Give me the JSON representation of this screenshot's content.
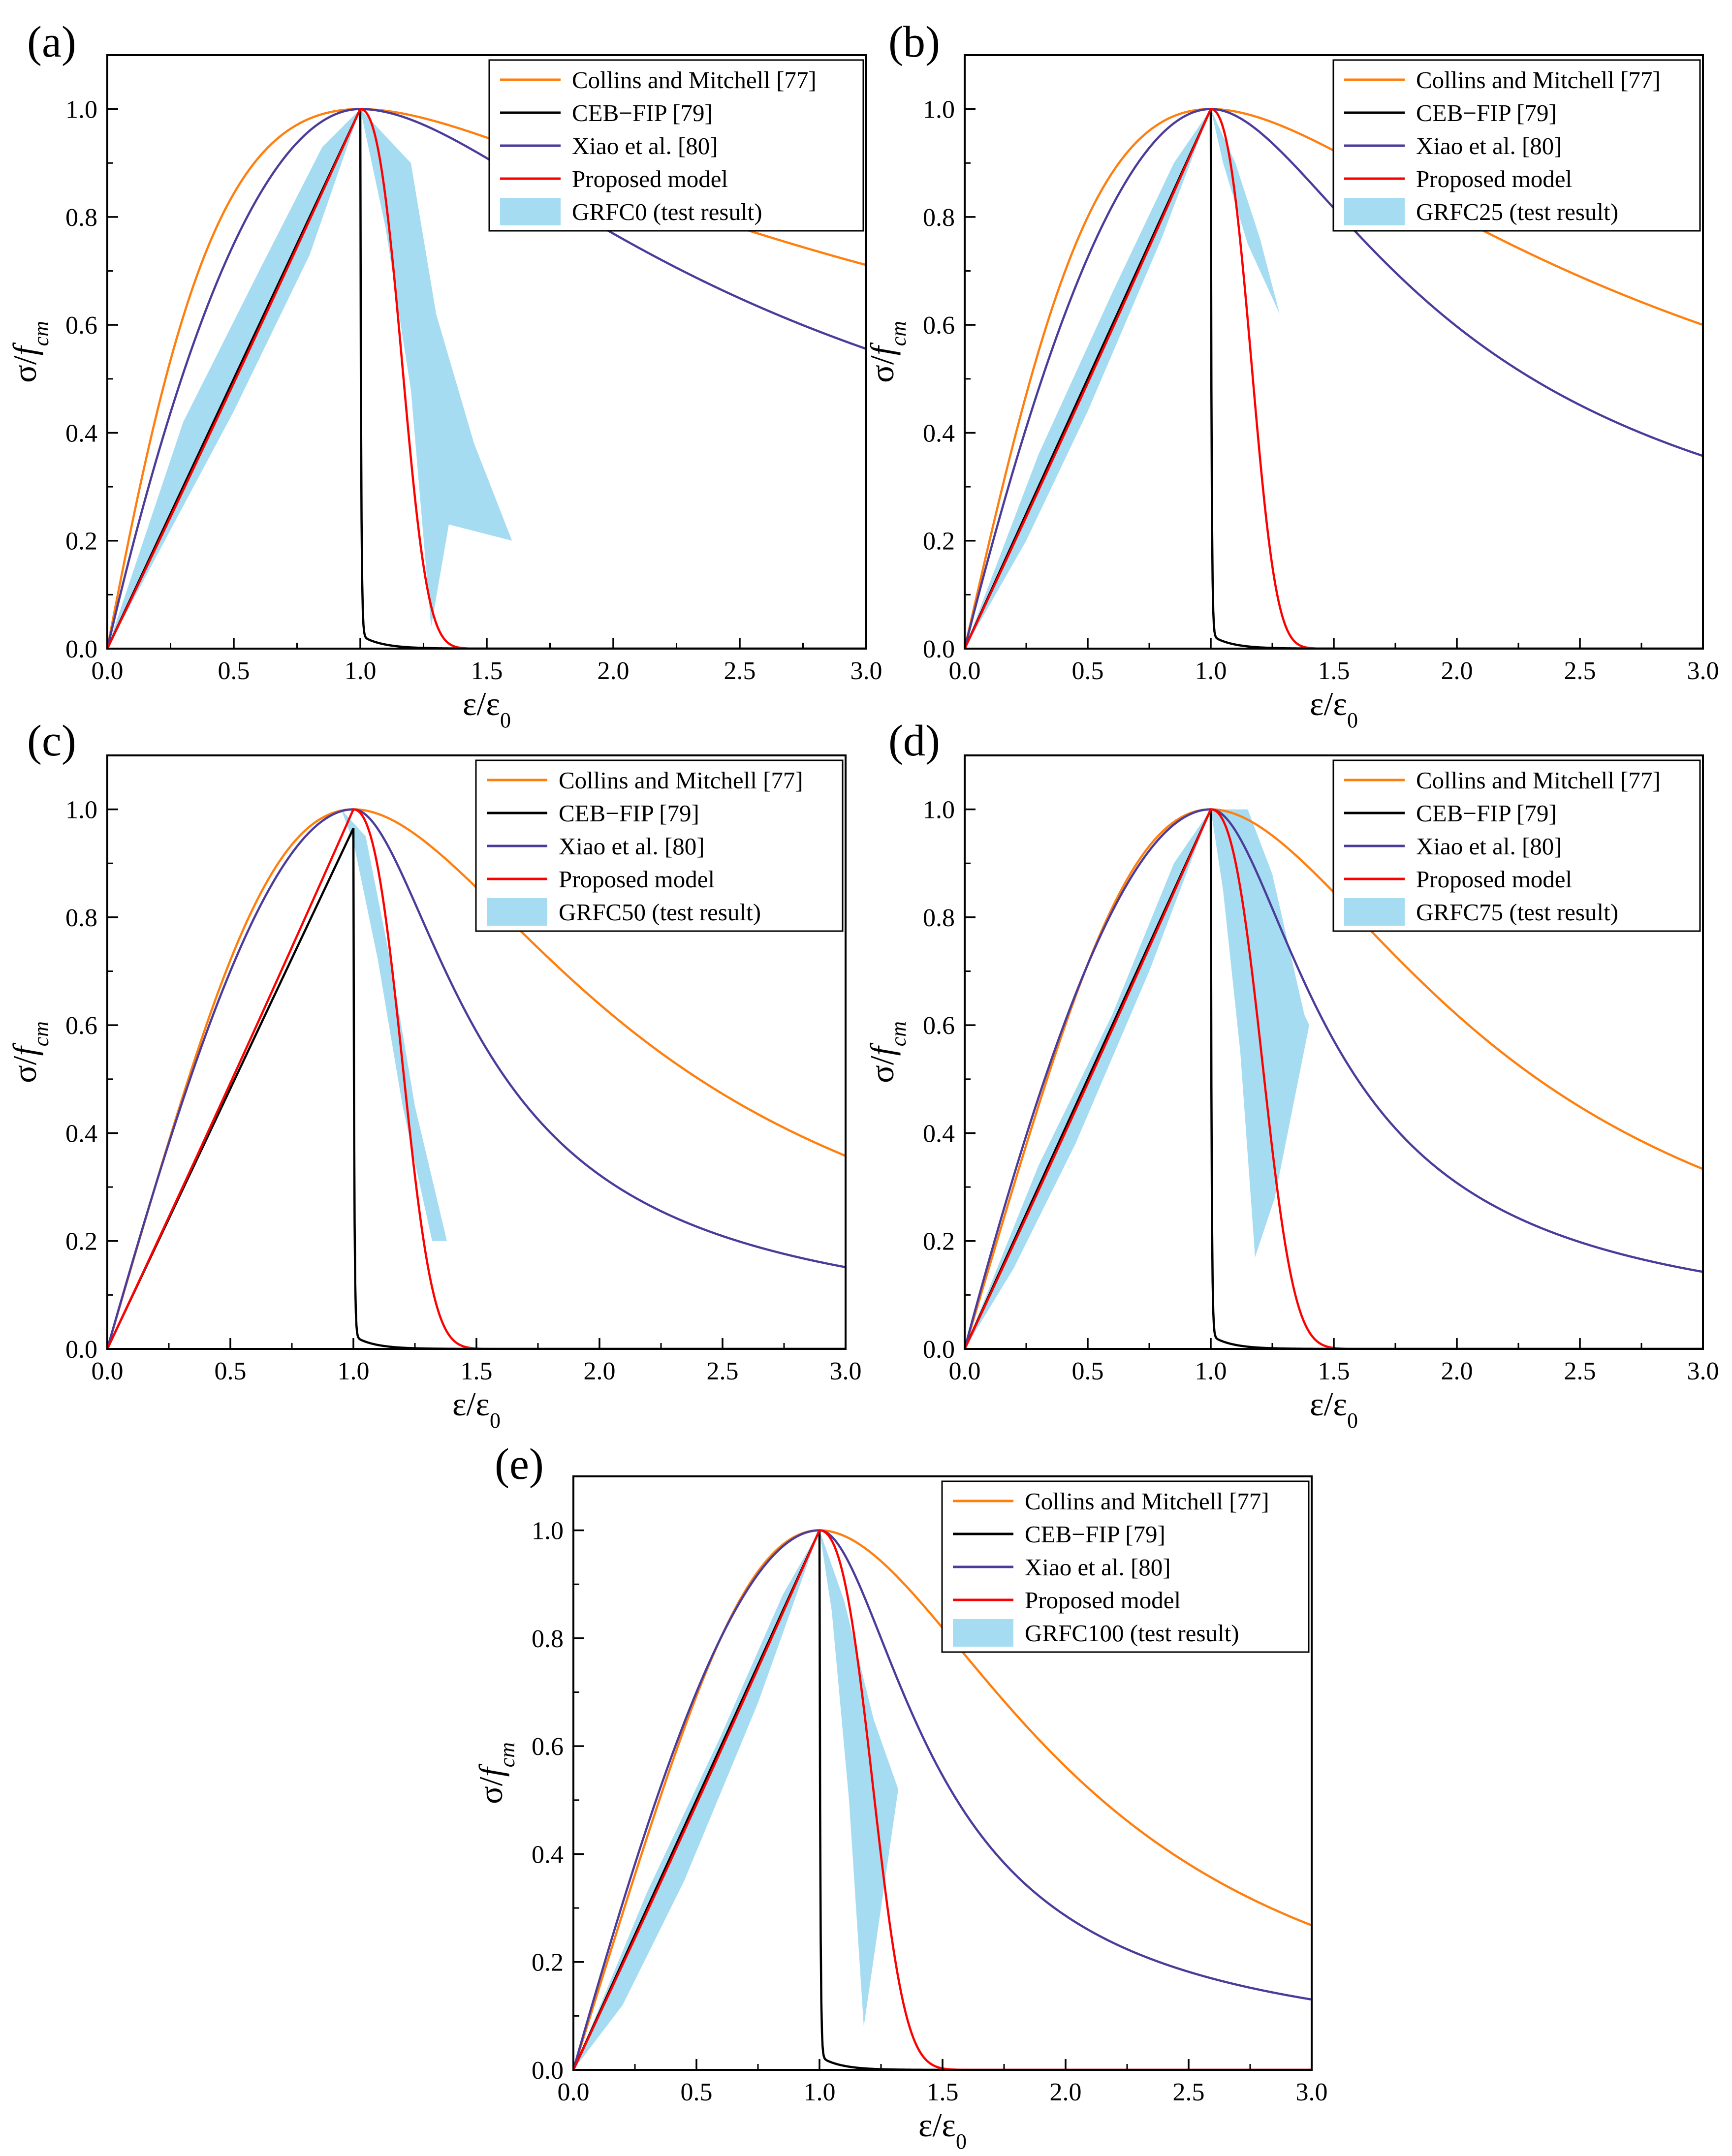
{
  "figure": {
    "colors": {
      "collins": "#FF7F0E",
      "ceb": "#000000",
      "xiao": "#4B3C9B",
      "proposed": "#FF0000",
      "test": "#A6DCF2"
    }
  },
  "chart_data": [
    {
      "panel": "(a)",
      "type": "line",
      "xlabel": "ε/ε0",
      "ylabel": "σ/fcm",
      "xlim": [
        0,
        3.0
      ],
      "ylim": [
        0,
        1.1
      ],
      "x_ticks": [
        "0.0",
        "0.5",
        "1.0",
        "1.5",
        "2.0",
        "2.5",
        "3.0"
      ],
      "y_ticks": [
        "0.0",
        "0.2",
        "0.4",
        "0.6",
        "0.8",
        "1.0"
      ],
      "legend_position": "top-right",
      "series": [
        {
          "name": "Collins and Mitchell [77]",
          "color": "#FF7F0E",
          "model": "collins",
          "n": 1.7
        },
        {
          "name": "CEB−FIP [79]",
          "color": "#000000",
          "model": "ceb",
          "peak": 1.0
        },
        {
          "name": "Xiao et al. [80]",
          "color": "#4B3C9B",
          "model": "xiao",
          "a": 2.0,
          "b": 0.6
        },
        {
          "name": "Proposed model",
          "color": "#FF0000",
          "model": "proposed",
          "alpha": 0.97,
          "beta": 22,
          "gamma": 8
        }
      ],
      "test_result": {
        "name": "GRFC0 (test result)",
        "upper": [
          [
            0,
            0
          ],
          [
            0.3,
            0.42
          ],
          [
            0.6,
            0.7
          ],
          [
            0.85,
            0.93
          ],
          [
            1.0,
            1.0
          ],
          [
            1.1,
            0.95
          ],
          [
            1.2,
            0.9
          ],
          [
            1.3,
            0.62
          ],
          [
            1.45,
            0.38
          ],
          [
            1.6,
            0.2
          ]
        ],
        "lower": [
          [
            1.6,
            0.2
          ],
          [
            1.35,
            0.23
          ],
          [
            1.28,
            0.04
          ],
          [
            1.2,
            0.48
          ],
          [
            1.1,
            0.78
          ],
          [
            1.0,
            1.0
          ],
          [
            0.8,
            0.73
          ],
          [
            0.5,
            0.44
          ],
          [
            0.25,
            0.22
          ],
          [
            0,
            0
          ]
        ]
      }
    },
    {
      "panel": "(b)",
      "type": "line",
      "xlabel": "ε/ε0",
      "ylabel": "σ/fcm",
      "xlim": [
        0,
        3.0
      ],
      "ylim": [
        0,
        1.1
      ],
      "x_ticks": [
        "0.0",
        "0.5",
        "1.0",
        "1.5",
        "2.0",
        "2.5",
        "3.0"
      ],
      "y_ticks": [
        "0.0",
        "0.2",
        "0.4",
        "0.6",
        "0.8",
        "1.0"
      ],
      "legend_position": "top-right",
      "series": [
        {
          "name": "Collins and Mitchell [77]",
          "color": "#FF7F0E",
          "model": "collins",
          "n": 2.0
        },
        {
          "name": "CEB−FIP [79]",
          "color": "#000000",
          "model": "ceb",
          "peak": 1.0
        },
        {
          "name": "Xiao et al. [80]",
          "color": "#4B3C9B",
          "model": "xiao",
          "a": 1.8,
          "b": 1.35
        },
        {
          "name": "Proposed model",
          "color": "#FF0000",
          "model": "proposed",
          "alpha": 0.97,
          "beta": 22,
          "gamma": 8
        }
      ],
      "test_result": {
        "name": "GRFC25 (test result)",
        "upper": [
          [
            0,
            0
          ],
          [
            0.3,
            0.36
          ],
          [
            0.6,
            0.66
          ],
          [
            0.85,
            0.9
          ],
          [
            1.0,
            1.0
          ],
          [
            1.1,
            0.9
          ],
          [
            1.2,
            0.76
          ],
          [
            1.28,
            0.62
          ]
        ],
        "lower": [
          [
            1.28,
            0.62
          ],
          [
            1.15,
            0.75
          ],
          [
            1.05,
            0.9
          ],
          [
            1.0,
            1.0
          ],
          [
            0.8,
            0.76
          ],
          [
            0.5,
            0.44
          ],
          [
            0.25,
            0.2
          ],
          [
            0,
            0
          ]
        ]
      }
    },
    {
      "panel": "(c)",
      "type": "line",
      "xlabel": "ε/ε0",
      "ylabel": "σ/fcm",
      "xlim": [
        0,
        3.0
      ],
      "ylim": [
        0,
        1.1
      ],
      "x_ticks": [
        "0.0",
        "0.5",
        "1.0",
        "1.5",
        "2.0",
        "2.5",
        "3.0"
      ],
      "y_ticks": [
        "0.0",
        "0.2",
        "0.4",
        "0.6",
        "0.8",
        "1.0"
      ],
      "legend_position": "top-right",
      "series": [
        {
          "name": "Collins and Mitchell [77]",
          "color": "#FF7F0E",
          "model": "collins",
          "n": 2.8
        },
        {
          "name": "CEB−FIP [79]",
          "color": "#000000",
          "model": "ceb",
          "peak": 0.965
        },
        {
          "name": "Xiao et al. [80]",
          "color": "#4B3C9B",
          "model": "xiao",
          "a": 1.6,
          "b": 4.2
        },
        {
          "name": "Proposed model",
          "color": "#FF0000",
          "model": "proposed",
          "alpha": 0.97,
          "beta": 16,
          "gamma": 6
        }
      ],
      "test_result": {
        "name": "GRFC50 (test result)",
        "upper": [
          [
            0.95,
            1.0
          ],
          [
            1.05,
            0.95
          ],
          [
            1.15,
            0.72
          ],
          [
            1.25,
            0.45
          ],
          [
            1.38,
            0.2
          ]
        ],
        "lower": [
          [
            1.38,
            0.2
          ],
          [
            1.32,
            0.2
          ],
          [
            1.2,
            0.45
          ],
          [
            1.1,
            0.72
          ],
          [
            1.0,
            0.94
          ],
          [
            0.95,
            1.0
          ]
        ]
      }
    },
    {
      "panel": "(d)",
      "type": "line",
      "xlabel": "ε/ε0",
      "ylabel": "σ/fcm",
      "xlim": [
        0,
        3.0
      ],
      "ylim": [
        0,
        1.1
      ],
      "x_ticks": [
        "0.0",
        "0.5",
        "1.0",
        "1.5",
        "2.0",
        "2.5",
        "3.0"
      ],
      "y_ticks": [
        "0.0",
        "0.2",
        "0.4",
        "0.6",
        "0.8",
        "1.0"
      ],
      "legend_position": "top-right",
      "series": [
        {
          "name": "Collins and Mitchell [77]",
          "color": "#FF7F0E",
          "model": "collins",
          "n": 2.9
        },
        {
          "name": "CEB−FIP [79]",
          "color": "#000000",
          "model": "ceb",
          "peak": 1.0
        },
        {
          "name": "Xiao et al. [80]",
          "color": "#4B3C9B",
          "model": "xiao",
          "a": 1.7,
          "b": 4.5
        },
        {
          "name": "Proposed model",
          "color": "#FF0000",
          "model": "proposed",
          "alpha": 0.97,
          "beta": 14,
          "gamma": 6
        }
      ],
      "test_result": {
        "name": "GRFC75 (test result)",
        "upper": [
          [
            0,
            0
          ],
          [
            0.3,
            0.34
          ],
          [
            0.6,
            0.62
          ],
          [
            0.85,
            0.9
          ],
          [
            1.0,
            1.0
          ],
          [
            1.15,
            1.0
          ],
          [
            1.25,
            0.88
          ],
          [
            1.38,
            0.62
          ],
          [
            1.4,
            0.6
          ]
        ],
        "lower": [
          [
            1.4,
            0.6
          ],
          [
            1.26,
            0.28
          ],
          [
            1.18,
            0.17
          ],
          [
            1.12,
            0.55
          ],
          [
            1.05,
            0.85
          ],
          [
            1.0,
            1.0
          ],
          [
            0.75,
            0.7
          ],
          [
            0.45,
            0.38
          ],
          [
            0.2,
            0.15
          ],
          [
            0,
            0
          ]
        ]
      }
    },
    {
      "panel": "(e)",
      "type": "line",
      "xlabel": "ε/ε0",
      "ylabel": "σ/fcm",
      "xlim": [
        0,
        3.0
      ],
      "ylim": [
        0,
        1.1
      ],
      "x_ticks": [
        "0.0",
        "0.5",
        "1.0",
        "1.5",
        "2.0",
        "2.5",
        "3.0"
      ],
      "y_ticks": [
        "0.0",
        "0.2",
        "0.4",
        "0.6",
        "0.8",
        "1.0"
      ],
      "legend_position": "top-right",
      "series": [
        {
          "name": "Collins and Mitchell [77]",
          "color": "#FF7F0E",
          "model": "collins",
          "n": 3.2
        },
        {
          "name": "CEB−FIP [79]",
          "color": "#000000",
          "model": "ceb",
          "peak": 1.0
        },
        {
          "name": "Xiao et al. [80]",
          "color": "#4B3C9B",
          "model": "xiao",
          "a": 1.6,
          "b": 5.0
        },
        {
          "name": "Proposed model",
          "color": "#FF0000",
          "model": "proposed",
          "alpha": 0.97,
          "beta": 13,
          "gamma": 6
        }
      ],
      "test_result": {
        "name": "GRFC100 (test result)",
        "upper": [
          [
            0,
            0
          ],
          [
            0.3,
            0.33
          ],
          [
            0.6,
            0.62
          ],
          [
            0.85,
            0.88
          ],
          [
            1.0,
            1.0
          ],
          [
            1.1,
            0.87
          ],
          [
            1.22,
            0.65
          ],
          [
            1.32,
            0.52
          ]
        ],
        "lower": [
          [
            1.32,
            0.52
          ],
          [
            1.25,
            0.3
          ],
          [
            1.18,
            0.08
          ],
          [
            1.12,
            0.5
          ],
          [
            1.05,
            0.85
          ],
          [
            1.0,
            1.0
          ],
          [
            0.75,
            0.68
          ],
          [
            0.45,
            0.35
          ],
          [
            0.2,
            0.12
          ],
          [
            0,
            0
          ]
        ]
      }
    }
  ]
}
